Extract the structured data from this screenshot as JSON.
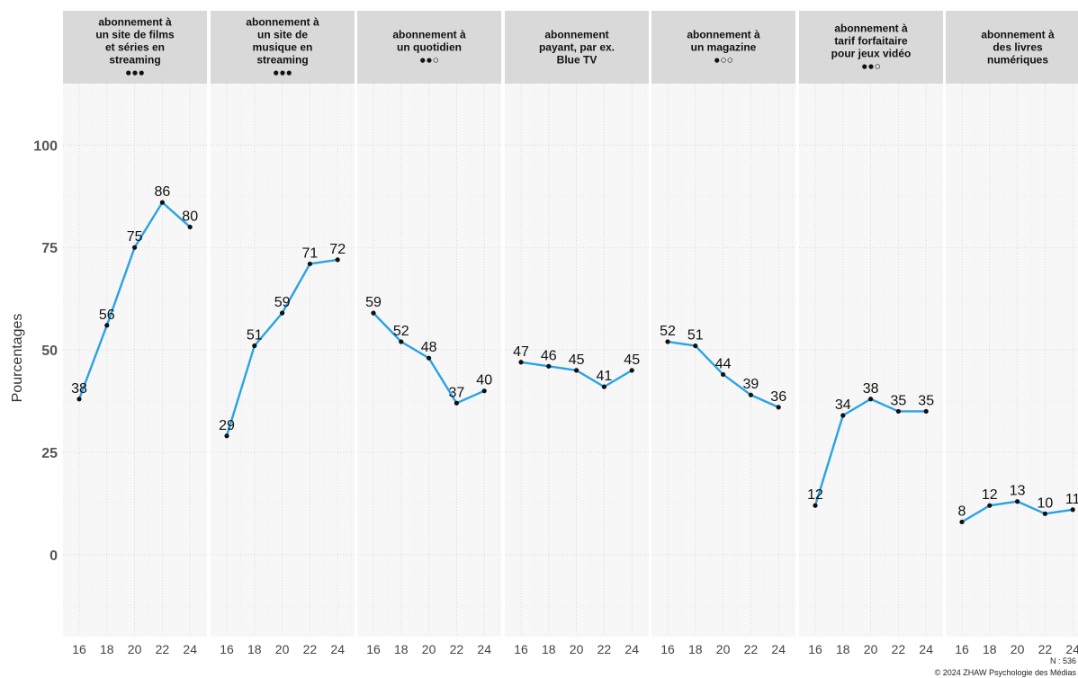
{
  "chart_data": {
    "type": "line",
    "ylabel": "Pourcentages",
    "ylim": [
      -20,
      115
    ],
    "y_ticks": [
      0,
      25,
      50,
      75,
      100
    ],
    "x": [
      16,
      18,
      20,
      22,
      24
    ],
    "grid": true,
    "colors": {
      "line": "#29a3e4",
      "point": "#111111",
      "strip_bg": "#d9d9d9",
      "panel_bg": "#f7f7f7"
    },
    "panels": [
      {
        "title": [
          "abonnement à",
          "un site de films",
          "et séries en",
          "streaming",
          "●●●"
        ],
        "values": [
          38,
          56,
          75,
          86,
          80
        ]
      },
      {
        "title": [
          "abonnement à",
          "un site de",
          "musique en",
          "streaming",
          "●●●"
        ],
        "values": [
          29,
          51,
          59,
          71,
          72
        ]
      },
      {
        "title": [
          "abonnement à",
          "un quotidien",
          "●●○"
        ],
        "values": [
          59,
          52,
          48,
          37,
          40
        ]
      },
      {
        "title": [
          "abonnement",
          "payant, par ex.",
          "Blue TV"
        ],
        "values": [
          47,
          46,
          45,
          41,
          45
        ]
      },
      {
        "title": [
          "abonnement à",
          "un magazine",
          "●○○"
        ],
        "values": [
          52,
          51,
          44,
          39,
          36
        ]
      },
      {
        "title": [
          "abonnement à",
          "tarif forfaitaire",
          "pour jeux vidéo",
          "●●○"
        ],
        "values": [
          12,
          34,
          38,
          35,
          35
        ]
      },
      {
        "title": [
          "abonnement à",
          "des livres",
          "numériques"
        ],
        "values": [
          8,
          12,
          13,
          10,
          11
        ]
      }
    ]
  },
  "footer": {
    "n_label": "N : 536",
    "copyright": "© 2024 ZHAW Psychologie des Médias"
  }
}
